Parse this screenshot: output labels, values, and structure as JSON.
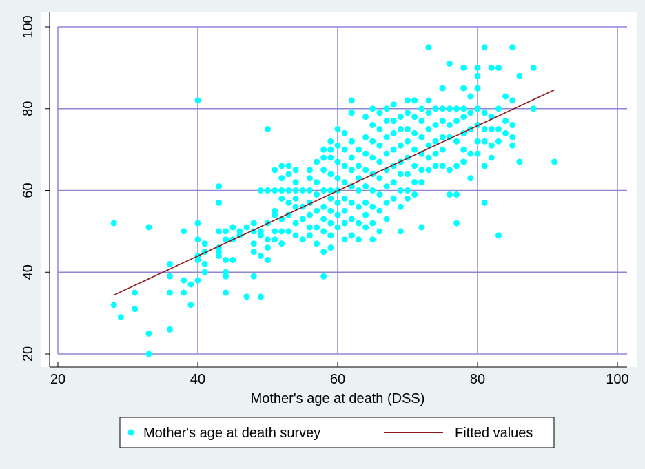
{
  "chart_data": {
    "type": "scatter",
    "title": "",
    "xlabel": "Mother's age at death (DSS)",
    "ylabel": "",
    "xlim": [
      20,
      100
    ],
    "ylim": [
      20,
      100
    ],
    "x_ticks": [
      20,
      40,
      60,
      80,
      100
    ],
    "y_ticks": [
      20,
      40,
      60,
      80,
      100
    ],
    "grid": true,
    "legend_position": "bottom",
    "colors": {
      "background": "#eaf2f3",
      "plot_area": "#ffffff",
      "grid": "#8f86d6",
      "points": "#00ffff",
      "fit_line": "#8b1a1a"
    },
    "series": [
      {
        "name": "Mother's age at death survey",
        "type": "scatter",
        "points": [
          [
            28,
            52
          ],
          [
            28,
            32
          ],
          [
            29,
            29
          ],
          [
            31,
            35
          ],
          [
            31,
            31
          ],
          [
            33,
            51
          ],
          [
            33,
            25
          ],
          [
            33,
            20
          ],
          [
            36,
            42
          ],
          [
            36,
            39
          ],
          [
            36,
            35
          ],
          [
            36,
            26
          ],
          [
            38,
            50
          ],
          [
            38,
            38
          ],
          [
            38,
            35
          ],
          [
            39,
            37
          ],
          [
            39,
            32
          ],
          [
            40,
            82
          ],
          [
            40,
            52
          ],
          [
            40,
            48
          ],
          [
            40,
            44
          ],
          [
            40,
            43
          ],
          [
            40,
            38
          ],
          [
            41,
            47
          ],
          [
            41,
            45
          ],
          [
            41,
            42
          ],
          [
            41,
            40
          ],
          [
            43,
            61
          ],
          [
            43,
            57
          ],
          [
            43,
            50
          ],
          [
            43,
            46
          ],
          [
            43,
            45
          ],
          [
            43,
            44
          ],
          [
            44,
            50
          ],
          [
            44,
            48
          ],
          [
            44,
            43
          ],
          [
            44,
            40
          ],
          [
            44,
            39
          ],
          [
            44,
            35
          ],
          [
            45,
            51
          ],
          [
            45,
            48
          ],
          [
            45,
            43
          ],
          [
            46,
            50
          ],
          [
            46,
            49
          ],
          [
            47,
            51
          ],
          [
            47,
            34
          ],
          [
            48,
            52
          ],
          [
            48,
            50
          ],
          [
            48,
            47
          ],
          [
            48,
            45
          ],
          [
            48,
            39
          ],
          [
            49,
            60
          ],
          [
            49,
            50
          ],
          [
            49,
            49
          ],
          [
            49,
            44
          ],
          [
            49,
            34
          ],
          [
            50,
            75
          ],
          [
            50,
            60
          ],
          [
            50,
            52
          ],
          [
            50,
            48
          ],
          [
            50,
            46
          ],
          [
            50,
            43
          ],
          [
            51,
            65
          ],
          [
            51,
            60
          ],
          [
            51,
            55
          ],
          [
            51,
            54
          ],
          [
            51,
            50
          ],
          [
            51,
            48
          ],
          [
            52,
            66
          ],
          [
            52,
            63
          ],
          [
            52,
            60
          ],
          [
            52,
            58
          ],
          [
            52,
            53
          ],
          [
            52,
            50
          ],
          [
            52,
            47
          ],
          [
            53,
            66
          ],
          [
            53,
            64
          ],
          [
            53,
            60
          ],
          [
            53,
            57
          ],
          [
            53,
            54
          ],
          [
            53,
            50
          ],
          [
            54,
            65
          ],
          [
            54,
            62
          ],
          [
            54,
            60
          ],
          [
            54,
            58
          ],
          [
            54,
            56
          ],
          [
            54,
            52
          ],
          [
            54,
            49
          ],
          [
            55,
            60
          ],
          [
            55,
            56
          ],
          [
            55,
            53
          ],
          [
            55,
            48
          ],
          [
            56,
            65
          ],
          [
            56,
            63
          ],
          [
            56,
            60
          ],
          [
            56,
            57
          ],
          [
            56,
            54
          ],
          [
            56,
            51
          ],
          [
            56,
            49
          ],
          [
            57,
            67
          ],
          [
            57,
            62
          ],
          [
            57,
            59
          ],
          [
            57,
            55
          ],
          [
            57,
            51
          ],
          [
            57,
            47
          ],
          [
            58,
            70
          ],
          [
            58,
            68
          ],
          [
            58,
            65
          ],
          [
            58,
            60
          ],
          [
            58,
            56
          ],
          [
            58,
            53
          ],
          [
            58,
            50
          ],
          [
            58,
            45
          ],
          [
            58,
            39
          ],
          [
            59,
            72
          ],
          [
            59,
            70
          ],
          [
            59,
            68
          ],
          [
            59,
            64
          ],
          [
            59,
            60
          ],
          [
            59,
            58
          ],
          [
            59,
            55
          ],
          [
            59,
            52
          ],
          [
            59,
            49
          ],
          [
            59,
            46
          ],
          [
            60,
            75
          ],
          [
            60,
            71
          ],
          [
            60,
            67
          ],
          [
            60,
            63
          ],
          [
            60,
            60
          ],
          [
            60,
            57
          ],
          [
            60,
            54
          ],
          [
            60,
            51
          ],
          [
            61,
            74
          ],
          [
            61,
            70
          ],
          [
            61,
            66
          ],
          [
            61,
            62
          ],
          [
            61,
            58
          ],
          [
            61,
            55
          ],
          [
            61,
            52
          ],
          [
            61,
            48
          ],
          [
            62,
            82
          ],
          [
            62,
            79
          ],
          [
            62,
            72
          ],
          [
            62,
            68
          ],
          [
            62,
            65
          ],
          [
            62,
            61
          ],
          [
            62,
            57
          ],
          [
            62,
            53
          ],
          [
            62,
            49
          ],
          [
            63,
            70
          ],
          [
            63,
            66
          ],
          [
            63,
            63
          ],
          [
            63,
            60
          ],
          [
            63,
            56
          ],
          [
            63,
            52
          ],
          [
            63,
            48
          ],
          [
            64,
            78
          ],
          [
            64,
            73
          ],
          [
            64,
            69
          ],
          [
            64,
            65
          ],
          [
            64,
            61
          ],
          [
            64,
            57
          ],
          [
            64,
            54
          ],
          [
            64,
            51
          ],
          [
            65,
            80
          ],
          [
            65,
            76
          ],
          [
            65,
            72
          ],
          [
            65,
            68
          ],
          [
            65,
            64
          ],
          [
            65,
            60
          ],
          [
            65,
            56
          ],
          [
            65,
            52
          ],
          [
            65,
            48
          ],
          [
            66,
            79
          ],
          [
            66,
            75
          ],
          [
            66,
            71
          ],
          [
            66,
            67
          ],
          [
            66,
            63
          ],
          [
            66,
            59
          ],
          [
            66,
            55
          ],
          [
            66,
            50
          ],
          [
            67,
            80
          ],
          [
            67,
            77
          ],
          [
            67,
            73
          ],
          [
            67,
            69
          ],
          [
            67,
            65
          ],
          [
            67,
            61
          ],
          [
            67,
            57
          ],
          [
            67,
            53
          ],
          [
            68,
            81
          ],
          [
            68,
            77
          ],
          [
            68,
            74
          ],
          [
            68,
            70
          ],
          [
            68,
            66
          ],
          [
            68,
            62
          ],
          [
            68,
            58
          ],
          [
            69,
            78
          ],
          [
            69,
            75
          ],
          [
            69,
            71
          ],
          [
            69,
            67
          ],
          [
            69,
            64
          ],
          [
            69,
            60
          ],
          [
            69,
            56
          ],
          [
            69,
            50
          ],
          [
            70,
            82
          ],
          [
            70,
            79
          ],
          [
            70,
            75
          ],
          [
            70,
            72
          ],
          [
            70,
            68
          ],
          [
            70,
            64
          ],
          [
            70,
            60
          ],
          [
            70,
            58
          ],
          [
            71,
            82
          ],
          [
            71,
            78
          ],
          [
            71,
            74
          ],
          [
            71,
            70
          ],
          [
            71,
            66
          ],
          [
            71,
            62
          ],
          [
            71,
            59
          ],
          [
            72,
            80
          ],
          [
            72,
            77
          ],
          [
            72,
            73
          ],
          [
            72,
            69
          ],
          [
            72,
            65
          ],
          [
            72,
            62
          ],
          [
            72,
            51
          ],
          [
            73,
            95
          ],
          [
            73,
            82
          ],
          [
            73,
            79
          ],
          [
            73,
            75
          ],
          [
            73,
            71
          ],
          [
            73,
            68
          ],
          [
            73,
            65
          ],
          [
            74,
            80
          ],
          [
            74,
            76
          ],
          [
            74,
            72
          ],
          [
            74,
            69
          ],
          [
            74,
            66
          ],
          [
            75,
            85
          ],
          [
            75,
            80
          ],
          [
            75,
            77
          ],
          [
            75,
            73
          ],
          [
            75,
            70
          ],
          [
            75,
            66
          ],
          [
            76,
            91
          ],
          [
            76,
            80
          ],
          [
            76,
            76
          ],
          [
            76,
            73
          ],
          [
            76,
            65
          ],
          [
            76,
            59
          ],
          [
            77,
            80
          ],
          [
            77,
            77
          ],
          [
            77,
            72
          ],
          [
            77,
            66
          ],
          [
            77,
            59
          ],
          [
            77,
            52
          ],
          [
            78,
            90
          ],
          [
            78,
            85
          ],
          [
            78,
            80
          ],
          [
            78,
            78
          ],
          [
            78,
            74
          ],
          [
            78,
            70
          ],
          [
            78,
            67
          ],
          [
            79,
            83
          ],
          [
            79,
            79
          ],
          [
            79,
            75
          ],
          [
            79,
            69
          ],
          [
            79,
            63
          ],
          [
            80,
            90
          ],
          [
            80,
            88
          ],
          [
            80,
            85
          ],
          [
            80,
            80
          ],
          [
            80,
            76
          ],
          [
            80,
            72
          ],
          [
            80,
            69
          ],
          [
            81,
            95
          ],
          [
            81,
            79
          ],
          [
            81,
            75
          ],
          [
            81,
            72
          ],
          [
            81,
            66
          ],
          [
            81,
            57
          ],
          [
            82,
            90
          ],
          [
            82,
            78
          ],
          [
            82,
            75
          ],
          [
            82,
            71
          ],
          [
            82,
            68
          ],
          [
            83,
            90
          ],
          [
            83,
            80
          ],
          [
            83,
            75
          ],
          [
            83,
            72
          ],
          [
            83,
            49
          ],
          [
            84,
            83
          ],
          [
            84,
            77
          ],
          [
            84,
            74
          ],
          [
            85,
            95
          ],
          [
            85,
            82
          ],
          [
            85,
            76
          ],
          [
            85,
            73
          ],
          [
            85,
            71
          ],
          [
            86,
            88
          ],
          [
            86,
            67
          ],
          [
            88,
            90
          ],
          [
            88,
            80
          ],
          [
            91,
            67
          ]
        ]
      },
      {
        "name": "Fitted values",
        "type": "line",
        "points": [
          [
            28,
            34.4
          ],
          [
            91,
            84.6
          ]
        ]
      }
    ]
  }
}
